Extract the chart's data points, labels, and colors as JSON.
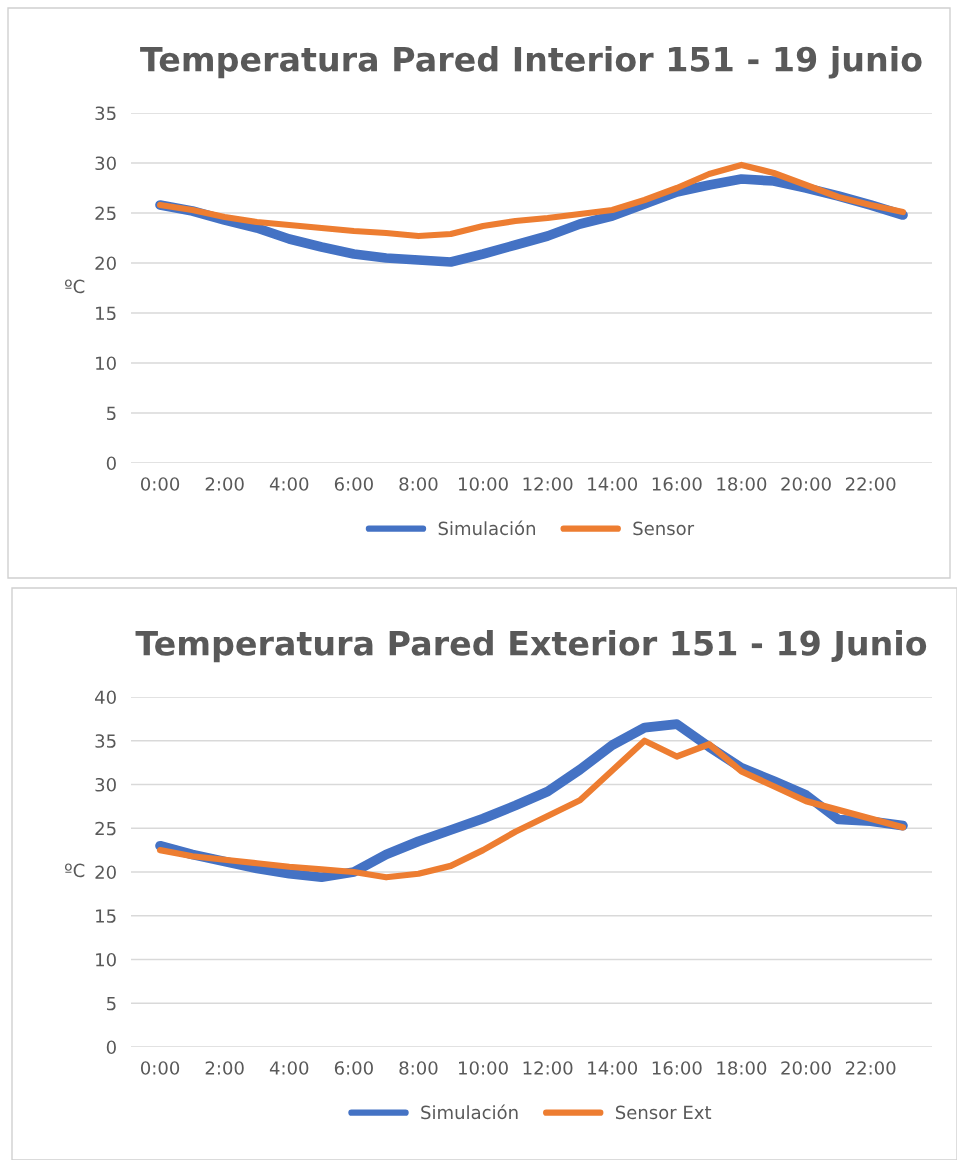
{
  "chart_data": [
    {
      "type": "line",
      "title": "Temperatura Pared Interior 151 - 19 junio",
      "ylabel": "ºC",
      "categories": [
        "0:00",
        null,
        "2:00",
        null,
        "4:00",
        null,
        "6:00",
        null,
        "8:00",
        null,
        "10:00",
        null,
        "12:00",
        null,
        "14:00",
        null,
        "16:00",
        null,
        "18:00",
        null,
        "20:00",
        null,
        "22:00",
        null
      ],
      "series": [
        {
          "name": "Simulación",
          "color": "#4472c4",
          "values": [
            25.8,
            25.2,
            24.3,
            23.5,
            22.4,
            21.6,
            20.9,
            20.5,
            20.3,
            20.1,
            20.9,
            21.8,
            22.7,
            23.9,
            24.7,
            25.9,
            27.1,
            27.8,
            28.4,
            28.2,
            27.5,
            26.7,
            25.8,
            24.8
          ]
        },
        {
          "name": "Sensor",
          "color": "#ed7d31",
          "values": [
            25.8,
            25.3,
            24.6,
            24.1,
            23.8,
            23.5,
            23.2,
            23.0,
            22.7,
            22.9,
            23.7,
            24.2,
            24.5,
            24.9,
            25.3,
            26.3,
            27.5,
            28.9,
            29.8,
            29.0,
            27.8,
            26.6,
            25.8,
            25.1
          ]
        }
      ],
      "ylim": [
        0,
        35
      ],
      "yticks": [
        0,
        5,
        10,
        15,
        20,
        25,
        30,
        35
      ],
      "grid": "y",
      "legend": "bottom"
    },
    {
      "type": "line",
      "title": "Temperatura Pared Exterior 151 - 19 Junio",
      "ylabel": "ºC",
      "categories": [
        "0:00",
        null,
        "2:00",
        null,
        "4:00",
        null,
        "6:00",
        null,
        "8:00",
        null,
        "10:00",
        null,
        "12:00",
        null,
        "14:00",
        null,
        "16:00",
        null,
        "18:00",
        null,
        "20:00",
        null,
        "22:00",
        null
      ],
      "series": [
        {
          "name": "Simulación",
          "color": "#4472c4",
          "values": [
            23.0,
            22.0,
            21.2,
            20.4,
            19.8,
            19.4,
            20.0,
            22.0,
            23.5,
            24.8,
            26.1,
            27.6,
            29.2,
            31.7,
            34.5,
            36.5,
            36.9,
            34.3,
            31.9,
            30.4,
            28.8,
            26.0,
            25.8,
            25.3
          ]
        },
        {
          "name": "Sensor Ext",
          "color": "#ed7d31",
          "values": [
            22.5,
            21.8,
            21.4,
            21.0,
            20.6,
            20.3,
            20.0,
            19.4,
            19.8,
            20.7,
            22.5,
            24.6,
            26.4,
            28.2,
            31.6,
            35.0,
            33.2,
            34.6,
            31.5,
            29.8,
            28.1,
            27.1,
            26.1,
            25.1
          ]
        }
      ],
      "ylim": [
        0,
        40
      ],
      "yticks": [
        0,
        5,
        10,
        15,
        20,
        25,
        30,
        35,
        40
      ],
      "grid": "y",
      "legend": "bottom"
    }
  ]
}
